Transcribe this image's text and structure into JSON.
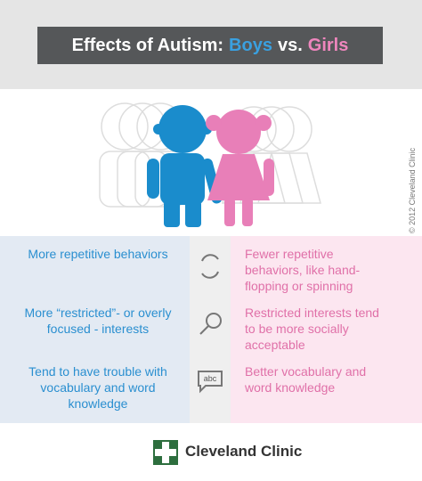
{
  "header": {
    "title_prefix": "Effects of Autism:",
    "title_boys": "Boys",
    "title_vs": "vs.",
    "title_girls": "Girls"
  },
  "copyright": "© 2012 Cleveland Clinic",
  "rows": [
    {
      "boys": "More repetitive behaviors",
      "girls": "Fewer repetitive behaviors, like hand-flopping or spinning"
    },
    {
      "boys": "More “restricted”- or overly focused - interests",
      "girls": "Restricted interests tend to be more socially acceptable"
    },
    {
      "boys": "Tend to have trouble with vocabulary and word knowledge",
      "girls": "Better vocabulary and word knowledge",
      "icon": "abc"
    }
  ],
  "footer": {
    "logo_text": "Cleveland Clinic"
  }
}
